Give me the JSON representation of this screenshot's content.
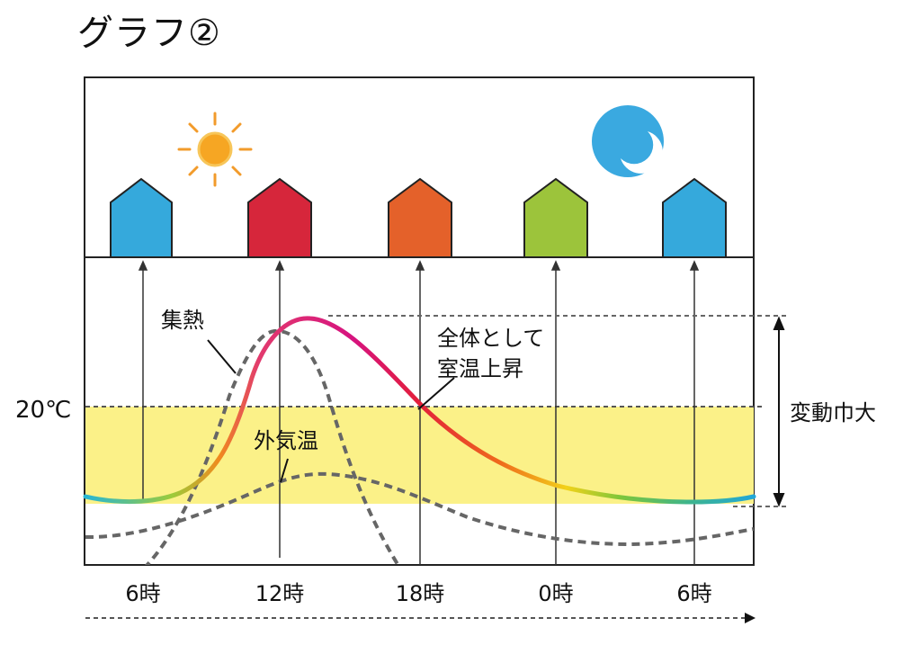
{
  "title": "グラフ②",
  "labels": {
    "heat_gain": "集熱",
    "overall_rise_line1": "全体として",
    "overall_rise_line2": "室温上昇",
    "outdoor_temp": "外気温",
    "fluctuation": "変動巾大",
    "twenty_c": "20℃"
  },
  "x_axis_ticks": [
    "6時",
    "12時",
    "18時",
    "0時",
    "6時"
  ],
  "icons": {
    "sun": "sun-icon",
    "moon": "crescent-moon-icon"
  },
  "colors": {
    "house_1": "#35a9dc",
    "house_2": "#d6263b",
    "house_3": "#e4612a",
    "house_4": "#9cc43b",
    "house_5": "#35a9dc",
    "comfort_band": "#fbf188",
    "sun": "#f6a623",
    "moon_disc": "#3aa9e0",
    "dashed": "#666666"
  }
}
